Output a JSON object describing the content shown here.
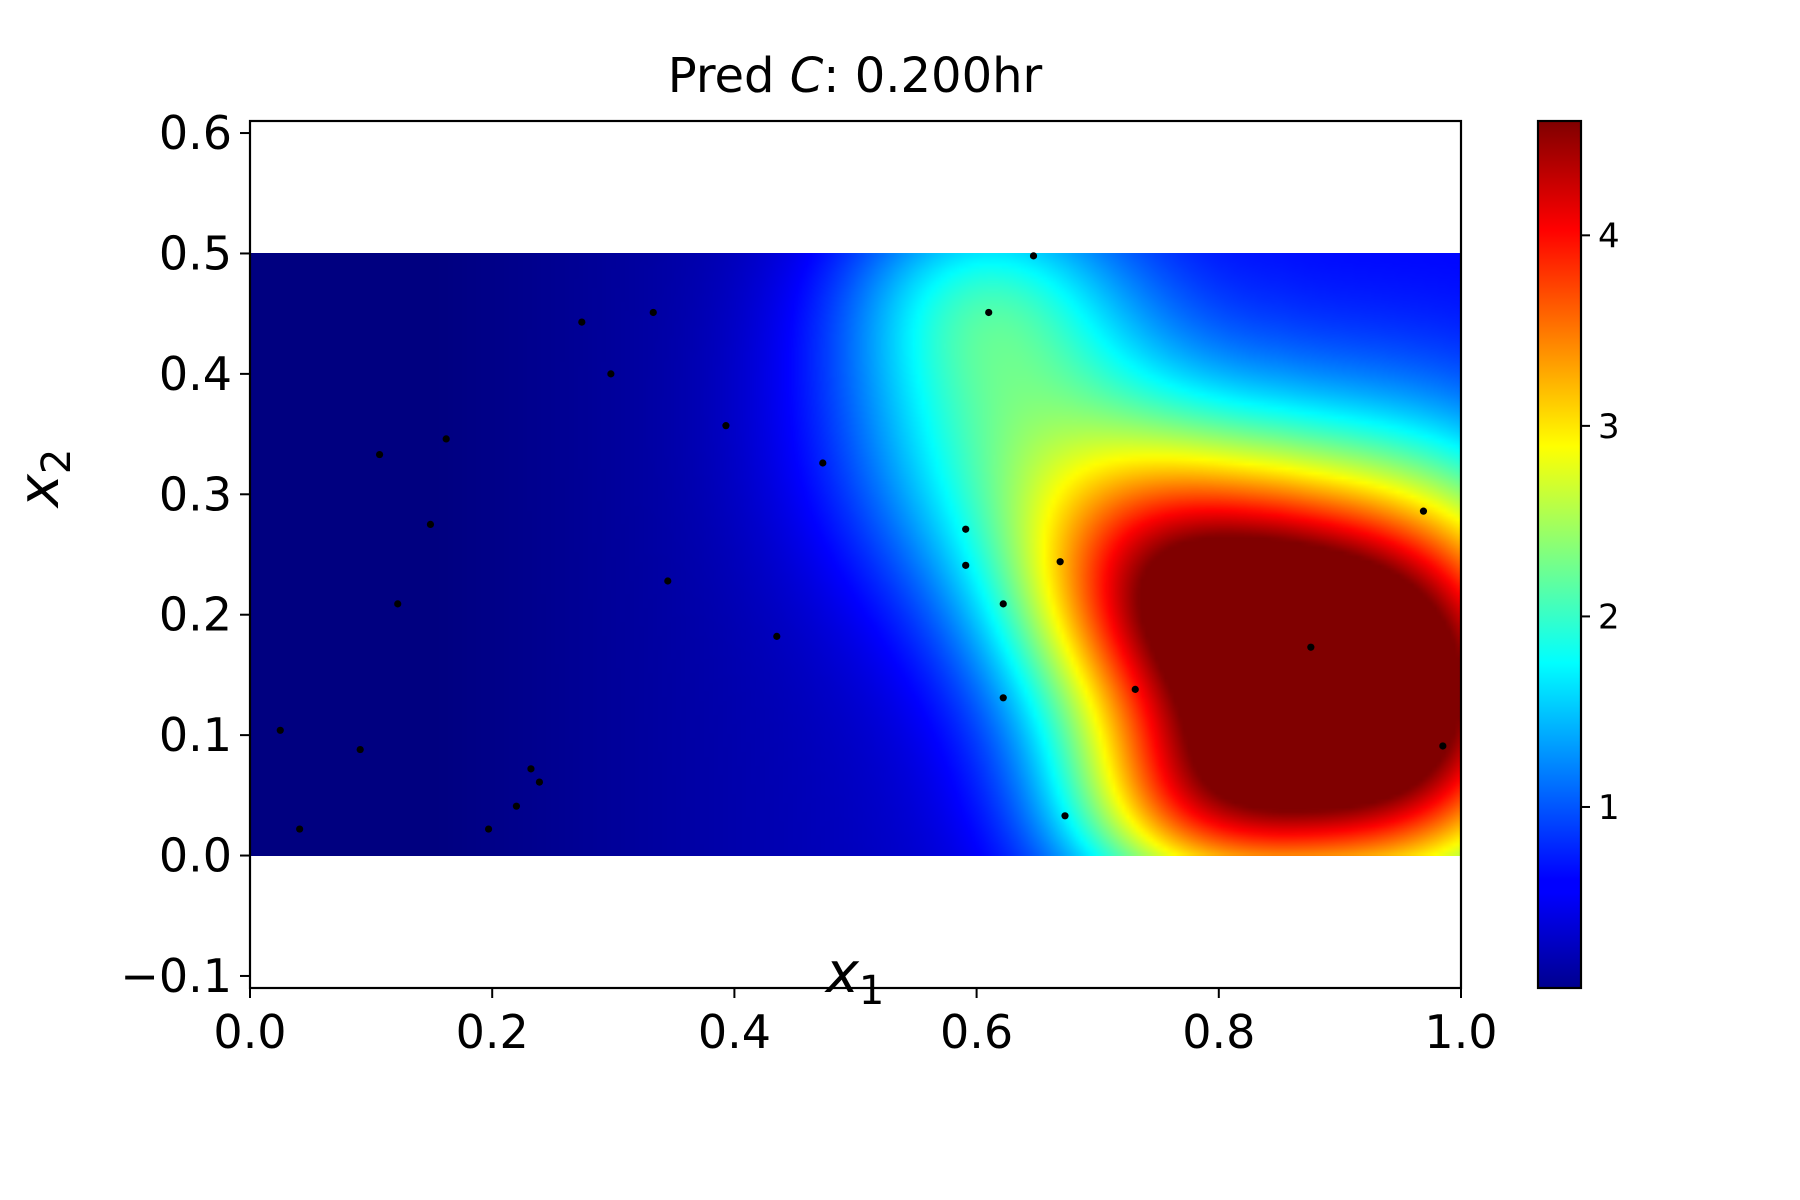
{
  "chart_data": {
    "type": "heatmap",
    "title_prefix": "Pred ",
    "title_symbol": "C",
    "title_suffix": ":  0.200hr",
    "xlabel": "x",
    "xlabel_sub": "1",
    "ylabel": "x",
    "ylabel_sub": "2",
    "xlim": [
      0.0,
      1.0
    ],
    "ylim": [
      -0.11,
      0.61
    ],
    "domain": {
      "x": [
        0.0,
        1.0
      ],
      "y": [
        0.0,
        0.5
      ]
    },
    "xticks": [
      0.0,
      0.2,
      0.4,
      0.6,
      0.8,
      1.0
    ],
    "xtick_labels": [
      "0.0",
      "0.2",
      "0.4",
      "0.6",
      "0.8",
      "1.0"
    ],
    "yticks": [
      -0.1,
      0.0,
      0.1,
      0.2,
      0.3,
      0.4,
      0.5,
      0.6
    ],
    "ytick_labels": [
      "−0.1",
      "0.0",
      "0.1",
      "0.2",
      "0.3",
      "0.4",
      "0.5",
      "0.6"
    ],
    "colormap": "jet",
    "colorbar": {
      "vmin": 0.05,
      "vmax": 4.6,
      "ticks": [
        1,
        2,
        3,
        4
      ],
      "tick_labels": [
        "1",
        "2",
        "3",
        "4"
      ]
    },
    "field_sources": [
      {
        "x": 0.92,
        "y": 0.17,
        "amplitude": 4.5,
        "sx": 0.12,
        "sy": 0.11
      },
      {
        "x": 0.75,
        "y": 0.22,
        "amplitude": 2.6,
        "sx": 0.09,
        "sy": 0.09
      },
      {
        "x": 0.95,
        "y": 0.05,
        "amplitude": 1.3,
        "sx": 0.09,
        "sy": 0.07
      },
      {
        "x": 0.78,
        "y": 0.04,
        "amplitude": 1.9,
        "sx": 0.08,
        "sy": 0.06
      },
      {
        "x": 0.62,
        "y": 0.36,
        "amplitude": 1.4,
        "sx": 0.1,
        "sy": 0.1
      },
      {
        "x": 0.6,
        "y": 0.47,
        "amplitude": 0.8,
        "sx": 0.08,
        "sy": 0.06
      }
    ],
    "field_baseline": 0.05,
    "field_ramp": {
      "start": 0.15,
      "end": 0.85,
      "amount": 0.55
    },
    "points": [
      {
        "x": 0.025,
        "y": 0.104
      },
      {
        "x": 0.041,
        "y": 0.022
      },
      {
        "x": 0.091,
        "y": 0.088
      },
      {
        "x": 0.107,
        "y": 0.333
      },
      {
        "x": 0.122,
        "y": 0.209
      },
      {
        "x": 0.149,
        "y": 0.275
      },
      {
        "x": 0.162,
        "y": 0.346
      },
      {
        "x": 0.197,
        "y": 0.022
      },
      {
        "x": 0.22,
        "y": 0.041
      },
      {
        "x": 0.232,
        "y": 0.072
      },
      {
        "x": 0.239,
        "y": 0.061
      },
      {
        "x": 0.274,
        "y": 0.443
      },
      {
        "x": 0.298,
        "y": 0.4
      },
      {
        "x": 0.333,
        "y": 0.451
      },
      {
        "x": 0.345,
        "y": 0.228
      },
      {
        "x": 0.393,
        "y": 0.357
      },
      {
        "x": 0.435,
        "y": 0.182
      },
      {
        "x": 0.473,
        "y": 0.326
      },
      {
        "x": 0.591,
        "y": 0.271
      },
      {
        "x": 0.591,
        "y": 0.241
      },
      {
        "x": 0.61,
        "y": 0.451
      },
      {
        "x": 0.622,
        "y": 0.209
      },
      {
        "x": 0.622,
        "y": 0.131
      },
      {
        "x": 0.647,
        "y": 0.498
      },
      {
        "x": 0.669,
        "y": 0.244
      },
      {
        "x": 0.673,
        "y": 0.033
      },
      {
        "x": 0.731,
        "y": 0.138
      },
      {
        "x": 0.876,
        "y": 0.173
      },
      {
        "x": 0.969,
        "y": 0.286
      },
      {
        "x": 0.985,
        "y": 0.091
      }
    ]
  }
}
